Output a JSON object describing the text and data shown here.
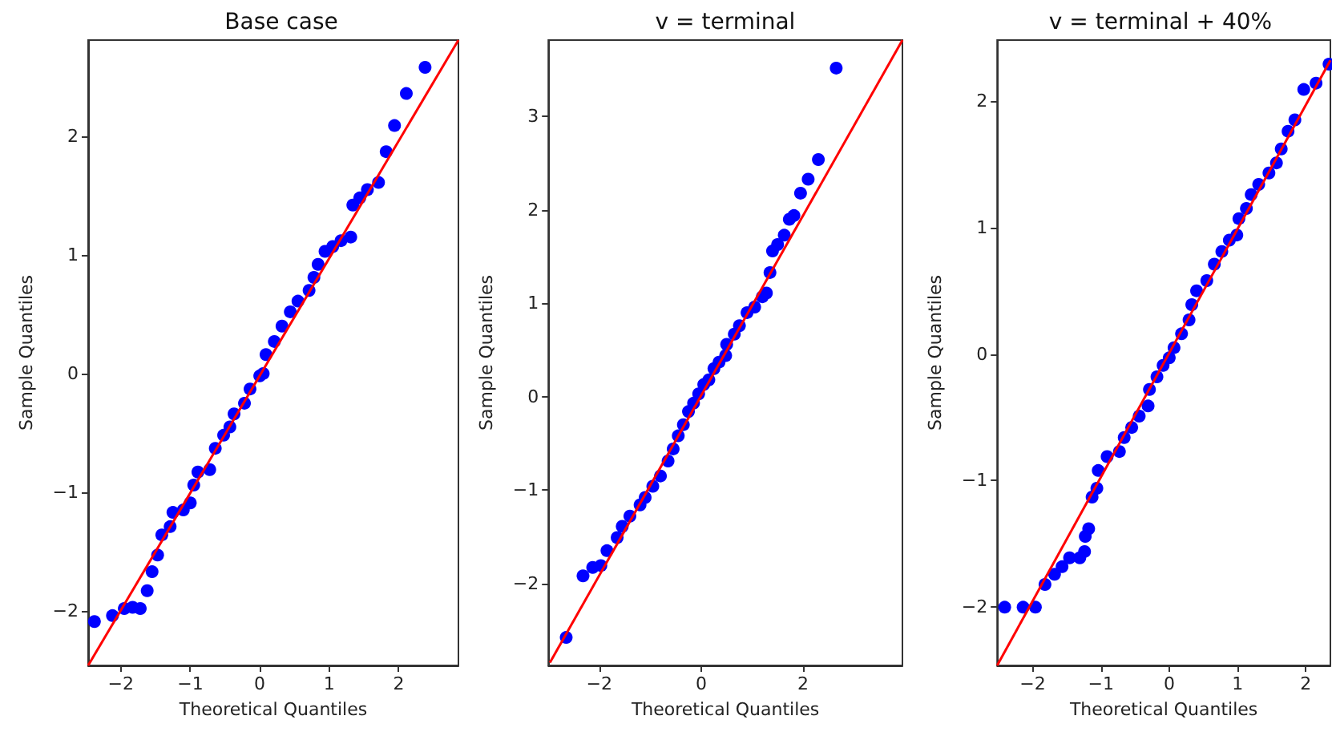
{
  "chart_data": [
    {
      "type": "scatter",
      "title": "Base case",
      "xlabel": "Theoretical Quantiles",
      "ylabel": "Sample Quantiles",
      "xlim": [
        -2.47,
        2.86
      ],
      "ylim": [
        -2.46,
        2.81
      ],
      "xticks": [
        -2,
        -1,
        0,
        1,
        2
      ],
      "yticks": [
        -2,
        -1,
        0,
        1,
        2
      ],
      "grid": false,
      "marker": "circle",
      "series": [
        {
          "color": "#0000ff",
          "x": [
            -2.38,
            -2.12,
            -1.95,
            -1.83,
            -1.72,
            -1.62,
            -1.55,
            -1.47,
            -1.41,
            -1.29,
            -1.25,
            -1.1,
            -1.0,
            -0.95,
            -0.89,
            -0.72,
            -0.64,
            -0.52,
            -0.43,
            -0.37,
            -0.22,
            -0.14,
            0,
            0.05,
            0.09,
            0.21,
            0.32,
            0.44,
            0.55,
            0.71,
            0.78,
            0.84,
            0.94,
            1.05,
            1.17,
            1.31,
            1.34,
            1.44,
            1.55,
            1.71,
            1.82,
            1.94,
            2.11,
            2.38
          ],
          "values": [
            -2.09,
            -2.04,
            -1.98,
            -1.97,
            -1.98,
            -1.83,
            -1.67,
            -1.53,
            -1.36,
            -1.29,
            -1.17,
            -1.15,
            -1.09,
            -0.94,
            -0.83,
            -0.81,
            -0.63,
            -0.52,
            -0.45,
            -0.34,
            -0.25,
            -0.13,
            -0.02,
            0,
            0.16,
            0.27,
            0.4,
            0.52,
            0.61,
            0.7,
            0.81,
            0.92,
            1.03,
            1.07,
            1.12,
            1.15,
            1.42,
            1.48,
            1.55,
            1.61,
            1.87,
            2.09,
            2.36,
            2.58
          ]
        },
        {
          "type": "line",
          "marker": "none",
          "line_style": "solid",
          "color": "#ff0000",
          "x": [
            -2.47,
            2.86
          ],
          "values": [
            -2.46,
            2.81
          ]
        }
      ]
    },
    {
      "type": "scatter",
      "title": "v = terminal",
      "xlabel": "Theoretical Quantiles",
      "ylabel": "Sample Quantiles",
      "xlim": [
        -3.0,
        3.95
      ],
      "ylim": [
        -2.88,
        3.82
      ],
      "xticks": [
        -2,
        0,
        2
      ],
      "yticks": [
        -2,
        -1,
        0,
        1,
        2,
        3
      ],
      "grid": false,
      "marker": "circle",
      "series": [
        {
          "color": "#0000ff",
          "x": [
            -2.65,
            -2.32,
            -2.13,
            -1.97,
            -1.85,
            -1.65,
            -1.55,
            -1.4,
            -1.2,
            -1.1,
            -0.95,
            -0.8,
            -0.65,
            -0.55,
            -0.45,
            -0.35,
            -0.25,
            -0.15,
            -0.05,
            0.05,
            0.15,
            0.25,
            0.35,
            0.48,
            0.5,
            0.65,
            0.75,
            0.9,
            1.05,
            1.2,
            1.28,
            1.35,
            1.4,
            1.5,
            1.63,
            1.73,
            1.82,
            1.95,
            2.1,
            2.3,
            2.65
          ],
          "values": [
            -2.58,
            -1.92,
            -1.83,
            -1.81,
            -1.65,
            -1.51,
            -1.39,
            -1.28,
            -1.16,
            -1.08,
            -0.96,
            -0.85,
            -0.69,
            -0.56,
            -0.42,
            -0.3,
            -0.16,
            -0.07,
            0.03,
            0.13,
            0.18,
            0.3,
            0.37,
            0.44,
            0.56,
            0.67,
            0.76,
            0.9,
            0.96,
            1.07,
            1.11,
            1.33,
            1.56,
            1.63,
            1.73,
            1.9,
            1.94,
            2.18,
            2.33,
            2.54,
            3.52
          ]
        },
        {
          "type": "line",
          "marker": "none",
          "line_style": "solid",
          "color": "#ff0000",
          "x": [
            -2.97,
            3.95
          ],
          "values": [
            -2.85,
            3.82
          ]
        }
      ]
    },
    {
      "type": "scatter",
      "title": "v = terminal + 40%",
      "xlabel": "Theoretical Quantiles",
      "ylabel": "Sample Quantiles",
      "xlim": [
        -2.52,
        2.36
      ],
      "ylim": [
        -2.46,
        2.48
      ],
      "xticks": [
        -2,
        -1,
        0,
        1,
        2
      ],
      "yticks": [
        -2,
        -1,
        0,
        1,
        2
      ],
      "grid": false,
      "marker": "circle",
      "series": [
        {
          "color": "#0000ff",
          "x": [
            -2.41,
            -2.14,
            -1.96,
            -1.82,
            -1.68,
            -1.57,
            -1.46,
            -1.31,
            -1.24,
            -1.23,
            -1.18,
            -1.13,
            -1.06,
            -1.04,
            -0.91,
            -0.73,
            -0.66,
            -0.55,
            -0.44,
            -0.31,
            -0.29,
            -0.18,
            -0.09,
            0,
            0.07,
            0.18,
            0.29,
            0.33,
            0.4,
            0.55,
            0.66,
            0.77,
            0.88,
            0.99,
            1.02,
            1.13,
            1.2,
            1.31,
            1.46,
            1.57,
            1.64,
            1.74,
            1.84,
            1.97,
            2.15,
            2.34
          ],
          "values": [
            -2.0,
            -2.0,
            -2.0,
            -1.82,
            -1.74,
            -1.68,
            -1.61,
            -1.61,
            -1.56,
            -1.44,
            -1.38,
            -1.13,
            -1.06,
            -0.92,
            -0.81,
            -0.77,
            -0.66,
            -0.58,
            -0.49,
            -0.41,
            -0.28,
            -0.18,
            -0.09,
            -0.03,
            0.05,
            0.16,
            0.27,
            0.39,
            0.5,
            0.58,
            0.71,
            0.81,
            0.9,
            0.94,
            1.07,
            1.15,
            1.26,
            1.34,
            1.43,
            1.51,
            1.62,
            1.76,
            1.85,
            2.09,
            2.14,
            2.29
          ]
        },
        {
          "type": "line",
          "marker": "none",
          "line_style": "solid",
          "color": "#ff0000",
          "x": [
            -2.52,
            2.36
          ],
          "values": [
            -2.46,
            2.32
          ]
        }
      ]
    }
  ]
}
